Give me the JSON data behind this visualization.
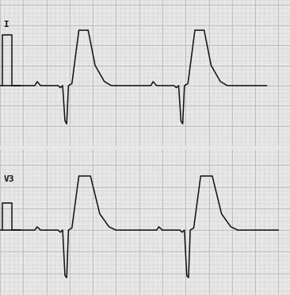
{
  "bg_color": "#e8e8e8",
  "grid_minor_color": "#cccccc",
  "grid_major_color": "#bbbbbb",
  "line_color": "#111111",
  "label_color": "#111111",
  "figsize": [
    3.66,
    3.72
  ],
  "dpi": 100,
  "lead1_label": "I",
  "lead2_label": "V3",
  "lead1_beats": [
    [
      0.0,
      0.0
    ],
    [
      0.3,
      0.0
    ],
    [
      0.32,
      0.04
    ],
    [
      0.35,
      0.0
    ],
    [
      0.5,
      0.0
    ],
    [
      0.52,
      -0.02
    ],
    [
      0.54,
      0.0
    ],
    [
      0.56,
      -0.35
    ],
    [
      0.575,
      -0.38
    ],
    [
      0.59,
      0.0
    ],
    [
      0.62,
      0.02
    ],
    [
      0.68,
      0.55
    ],
    [
      0.76,
      0.55
    ],
    [
      0.82,
      0.2
    ],
    [
      0.9,
      0.04
    ],
    [
      0.96,
      0.0
    ],
    [
      1.3,
      0.0
    ],
    [
      1.32,
      0.04
    ],
    [
      1.35,
      0.0
    ],
    [
      1.5,
      0.0
    ],
    [
      1.52,
      -0.02
    ],
    [
      1.54,
      0.0
    ],
    [
      1.56,
      -0.35
    ],
    [
      1.575,
      -0.38
    ],
    [
      1.59,
      0.0
    ],
    [
      1.62,
      0.02
    ],
    [
      1.68,
      0.55
    ],
    [
      1.76,
      0.55
    ],
    [
      1.82,
      0.2
    ],
    [
      1.9,
      0.04
    ],
    [
      1.96,
      0.0
    ],
    [
      2.3,
      0.0
    ]
  ],
  "lead2_beats": [
    [
      0.0,
      0.0
    ],
    [
      0.3,
      0.0
    ],
    [
      0.32,
      0.03
    ],
    [
      0.35,
      0.0
    ],
    [
      0.5,
      0.0
    ],
    [
      0.52,
      -0.02
    ],
    [
      0.54,
      0.0
    ],
    [
      0.56,
      -0.42
    ],
    [
      0.575,
      -0.44
    ],
    [
      0.59,
      0.0
    ],
    [
      0.62,
      0.02
    ],
    [
      0.68,
      0.5
    ],
    [
      0.78,
      0.5
    ],
    [
      0.86,
      0.15
    ],
    [
      0.94,
      0.03
    ],
    [
      1.0,
      0.0
    ],
    [
      1.35,
      0.0
    ],
    [
      1.37,
      0.03
    ],
    [
      1.4,
      0.0
    ],
    [
      1.55,
      0.0
    ],
    [
      1.57,
      -0.02
    ],
    [
      1.59,
      0.0
    ],
    [
      1.61,
      -0.42
    ],
    [
      1.625,
      -0.44
    ],
    [
      1.64,
      0.0
    ],
    [
      1.67,
      0.02
    ],
    [
      1.73,
      0.5
    ],
    [
      1.83,
      0.5
    ],
    [
      1.91,
      0.15
    ],
    [
      1.99,
      0.03
    ],
    [
      2.05,
      0.0
    ],
    [
      2.4,
      0.0
    ]
  ],
  "cal1_x": [
    0.02,
    0.02,
    0.1,
    0.1,
    0.18,
    0.18
  ],
  "cal1_y": [
    0.0,
    0.5,
    0.5,
    0.0,
    0.0,
    0.0
  ],
  "cal2_x": [
    0.02,
    0.02,
    0.1,
    0.1,
    0.18,
    0.18
  ],
  "cal2_y": [
    0.0,
    0.25,
    0.25,
    0.0,
    0.0,
    0.0
  ],
  "xlim": [
    0,
    2.5
  ],
  "ylim1": [
    -0.6,
    0.85
  ],
  "ylim2": [
    -0.6,
    0.75
  ],
  "minor_step": 0.04,
  "major_step": 0.2
}
